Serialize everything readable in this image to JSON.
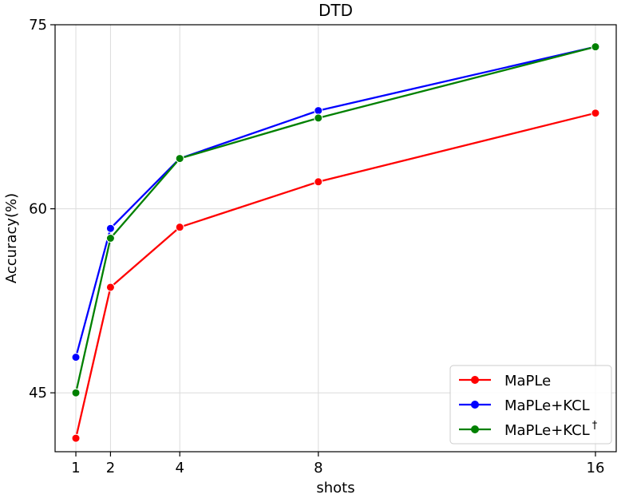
{
  "chart_data": {
    "type": "line",
    "title": "DTD",
    "xlabel": "shots",
    "ylabel": "Accuracy(%)",
    "x": [
      1,
      2,
      4,
      8,
      16
    ],
    "xticks": [
      "1",
      "2",
      "4",
      "8",
      "16"
    ],
    "yticks": [
      "45",
      "60",
      "75"
    ],
    "ylim": [
      40.2,
      75
    ],
    "grid": true,
    "legend_position": "lower right",
    "series": [
      {
        "name": "MaPLe",
        "color": "#ff0000",
        "marker": "circle",
        "values": [
          41.3,
          53.6,
          58.5,
          62.2,
          67.8
        ]
      },
      {
        "name": "MaPLe+KCL",
        "color": "#0000ff",
        "marker": "circle",
        "values": [
          47.9,
          58.4,
          64.1,
          68.0,
          73.2
        ]
      },
      {
        "name": "MaPLe+KCL",
        "name_superscript": "†",
        "color": "#008000",
        "marker": "circle",
        "values": [
          45.0,
          57.6,
          64.1,
          67.4,
          73.2
        ]
      }
    ]
  }
}
